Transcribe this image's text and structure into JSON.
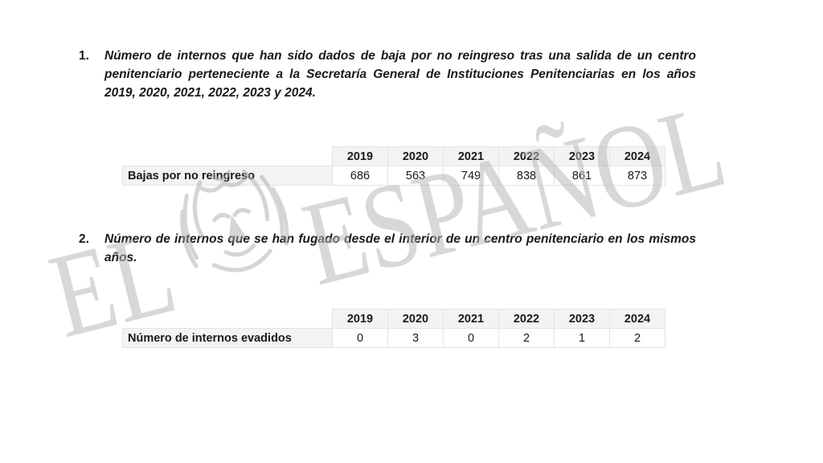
{
  "question1": {
    "number": "1.",
    "text": "Número de internos que han sido dados de baja por no reingreso tras una salida de un centro penitenciario perteneciente a la Secretaría General de Instituciones Penitenciarias en los años 2019, 2020, 2021, 2022, 2023 y 2024."
  },
  "table1": {
    "years": [
      "2019",
      "2020",
      "2021",
      "2022",
      "2023",
      "2024"
    ],
    "row_label": "Bajas por  no reingreso",
    "values": [
      "686",
      "563",
      "749",
      "838",
      "861",
      "873"
    ]
  },
  "question2": {
    "number": "2.",
    "text": "Número de internos que se han fugado desde el interior de un centro penitenciario en los mismos años."
  },
  "table2": {
    "years": [
      "2019",
      "2020",
      "2021",
      "2022",
      "2023",
      "2024"
    ],
    "row_label": "Número de internos evadidos",
    "values": [
      "0",
      "3",
      "0",
      "2",
      "1",
      "2"
    ]
  },
  "watermark": {
    "text_left": "EL",
    "text_right": "ESPAÑOL",
    "logo": "lion-head-icon",
    "color": "#c4c4c4"
  }
}
